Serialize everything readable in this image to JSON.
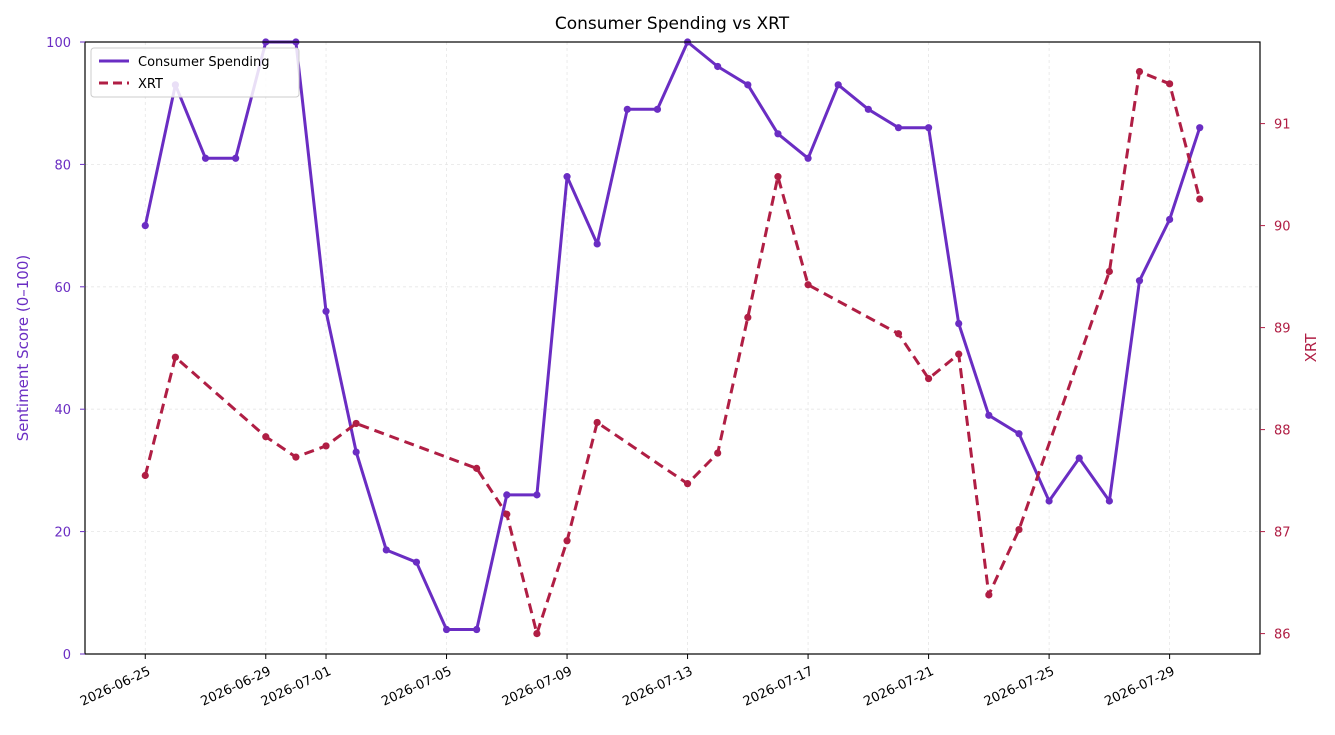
{
  "chart_data": {
    "type": "line",
    "title": "Consumer Spending vs XRT",
    "xlabel": "",
    "ylabel_left": "Sentiment Score (0–100)",
    "ylabel_right": "XRT",
    "x_ticks": [
      "2026-06-25",
      "2026-06-29",
      "2026-07-01",
      "2026-07-05",
      "2026-07-09",
      "2026-07-13",
      "2026-07-17",
      "2026-07-21",
      "2026-07-25",
      "2026-07-29"
    ],
    "x_range": [
      "2026-06-23",
      "2026-08-01"
    ],
    "y_left_range": [
      0,
      100
    ],
    "y_left_ticks": [
      0,
      20,
      40,
      60,
      80,
      100
    ],
    "y_right_range": [
      85.8,
      91.8
    ],
    "y_right_ticks": [
      86,
      87,
      88,
      89,
      90,
      91
    ],
    "grid": true,
    "legend_position": "top-left",
    "colors": {
      "consumer_spending": "#6a2dc3",
      "xrt": "#b01e44"
    },
    "series": [
      {
        "name": "Consumer Spending",
        "axis": "left",
        "style": "solid",
        "points": [
          [
            "2026-06-25",
            70
          ],
          [
            "2026-06-26",
            93
          ],
          [
            "2026-06-27",
            81
          ],
          [
            "2026-06-28",
            81
          ],
          [
            "2026-06-29",
            100
          ],
          [
            "2026-06-30",
            100
          ],
          [
            "2026-07-01",
            56
          ],
          [
            "2026-07-02",
            33
          ],
          [
            "2026-07-03",
            17
          ],
          [
            "2026-07-04",
            15
          ],
          [
            "2026-07-05",
            4
          ],
          [
            "2026-07-06",
            4
          ],
          [
            "2026-07-07",
            26
          ],
          [
            "2026-07-08",
            26
          ],
          [
            "2026-07-09",
            78
          ],
          [
            "2026-07-10",
            67
          ],
          [
            "2026-07-11",
            89
          ],
          [
            "2026-07-12",
            89
          ],
          [
            "2026-07-13",
            100
          ],
          [
            "2026-07-14",
            96
          ],
          [
            "2026-07-15",
            93
          ],
          [
            "2026-07-16",
            85
          ],
          [
            "2026-07-17",
            81
          ],
          [
            "2026-07-18",
            93
          ],
          [
            "2026-07-19",
            89
          ],
          [
            "2026-07-20",
            86
          ],
          [
            "2026-07-21",
            86
          ],
          [
            "2026-07-22",
            54
          ],
          [
            "2026-07-23",
            39
          ],
          [
            "2026-07-24",
            36
          ],
          [
            "2026-07-25",
            25
          ],
          [
            "2026-07-26",
            32
          ],
          [
            "2026-07-27",
            25
          ],
          [
            "2026-07-28",
            61
          ],
          [
            "2026-07-29",
            71
          ],
          [
            "2026-07-30",
            86
          ]
        ]
      },
      {
        "name": "XRT",
        "axis": "right",
        "style": "dashed",
        "points": [
          [
            "2026-06-25",
            87.55
          ],
          [
            "2026-06-26",
            88.71
          ],
          [
            "2026-06-29",
            87.93
          ],
          [
            "2026-06-30",
            87.73
          ],
          [
            "2026-07-01",
            87.84
          ],
          [
            "2026-07-02",
            88.06
          ],
          [
            "2026-07-06",
            87.62
          ],
          [
            "2026-07-07",
            87.17
          ],
          [
            "2026-07-08",
            86.0
          ],
          [
            "2026-07-09",
            86.91
          ],
          [
            "2026-07-10",
            88.07
          ],
          [
            "2026-07-13",
            87.47
          ],
          [
            "2026-07-14",
            87.77
          ],
          [
            "2026-07-15",
            89.1
          ],
          [
            "2026-07-16",
            90.48
          ],
          [
            "2026-07-17",
            89.42
          ],
          [
            "2026-07-20",
            88.94
          ],
          [
            "2026-07-21",
            88.5
          ],
          [
            "2026-07-22",
            88.74
          ],
          [
            "2026-07-23",
            86.38
          ],
          [
            "2026-07-24",
            87.02
          ],
          [
            "2026-07-27",
            89.55
          ],
          [
            "2026-07-28",
            91.51
          ],
          [
            "2026-07-29",
            91.39
          ],
          [
            "2026-07-30",
            90.26
          ]
        ]
      }
    ]
  }
}
